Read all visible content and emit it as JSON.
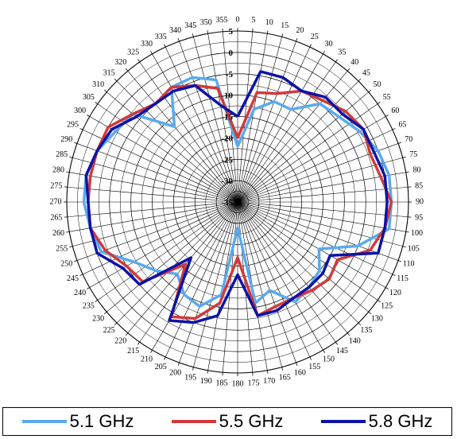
{
  "chart_data": {
    "type": "polar-line",
    "angle_unit": "degrees",
    "angle_tick_step": 5,
    "angle_labels": [
      "0",
      "5",
      "10",
      "15",
      "20",
      "25",
      "30",
      "35",
      "40",
      "45",
      "50",
      "55",
      "60",
      "65",
      "70",
      "75",
      "80",
      "85",
      "90",
      "95",
      "100",
      "105",
      "110",
      "115",
      "120",
      "125",
      "130",
      "135",
      "140",
      "145",
      "150",
      "155",
      "160",
      "165",
      "170",
      "175",
      "180",
      "185",
      "190",
      "195",
      "200",
      "205",
      "210",
      "215",
      "220",
      "225",
      "230",
      "235",
      "240",
      "245",
      "250",
      "255",
      "260",
      "265",
      "270",
      "275",
      "280",
      "285",
      "290",
      "295",
      "300",
      "305",
      "310",
      "315",
      "320",
      "325",
      "330",
      "335",
      "340",
      "345",
      "350",
      "355"
    ],
    "radial_range": [
      -35,
      5
    ],
    "radial_labels": [
      "5",
      "0",
      "-5",
      "-10",
      "-15",
      "-20",
      "-25",
      "-30",
      "-35"
    ],
    "angles": [
      0,
      10,
      20,
      30,
      40,
      50,
      60,
      70,
      80,
      90,
      100,
      110,
      120,
      130,
      140,
      150,
      160,
      170,
      180,
      190,
      200,
      210,
      220,
      230,
      240,
      250,
      260,
      270,
      280,
      290,
      300,
      310,
      320,
      330,
      340,
      350
    ],
    "series": [
      {
        "name": "5.1 GHz",
        "color": "#5aaaee",
        "values": [
          -22,
          -13,
          -10,
          -10,
          -5,
          -4,
          -2,
          0,
          1,
          1,
          1,
          -5,
          -13,
          -10,
          -9,
          -8,
          -13,
          -11,
          -29,
          -13,
          -9,
          -10,
          -13,
          -10,
          -7,
          -1,
          0,
          1,
          1,
          0,
          -2,
          -3,
          -12,
          -4,
          -4,
          -6
        ]
      },
      {
        "name": "5.5 GHz",
        "color": "#d03a3a",
        "values": [
          -20,
          -9,
          -8,
          -5,
          -4,
          -2,
          -1,
          -2,
          -1,
          1,
          0,
          -2,
          -8,
          -7,
          -8,
          -9,
          -9,
          -8,
          -22,
          -11,
          -6,
          -4,
          -16,
          -6,
          -5,
          -2,
          0,
          0,
          0,
          0,
          0,
          -3,
          -5,
          -4,
          -6,
          -8
        ]
      },
      {
        "name": "5.8 GHz",
        "color": "#0c13a6",
        "values": [
          -15,
          -4,
          -4,
          -5,
          -3,
          -3,
          -1,
          -1,
          0,
          0,
          0,
          0,
          -10,
          -9,
          -9,
          -9,
          -8,
          -8,
          -18,
          -8,
          -5,
          -3,
          -18,
          -5,
          -4,
          0,
          0,
          0,
          1,
          0,
          -1,
          -4,
          -5,
          -5,
          -6,
          -12
        ]
      }
    ]
  }
}
